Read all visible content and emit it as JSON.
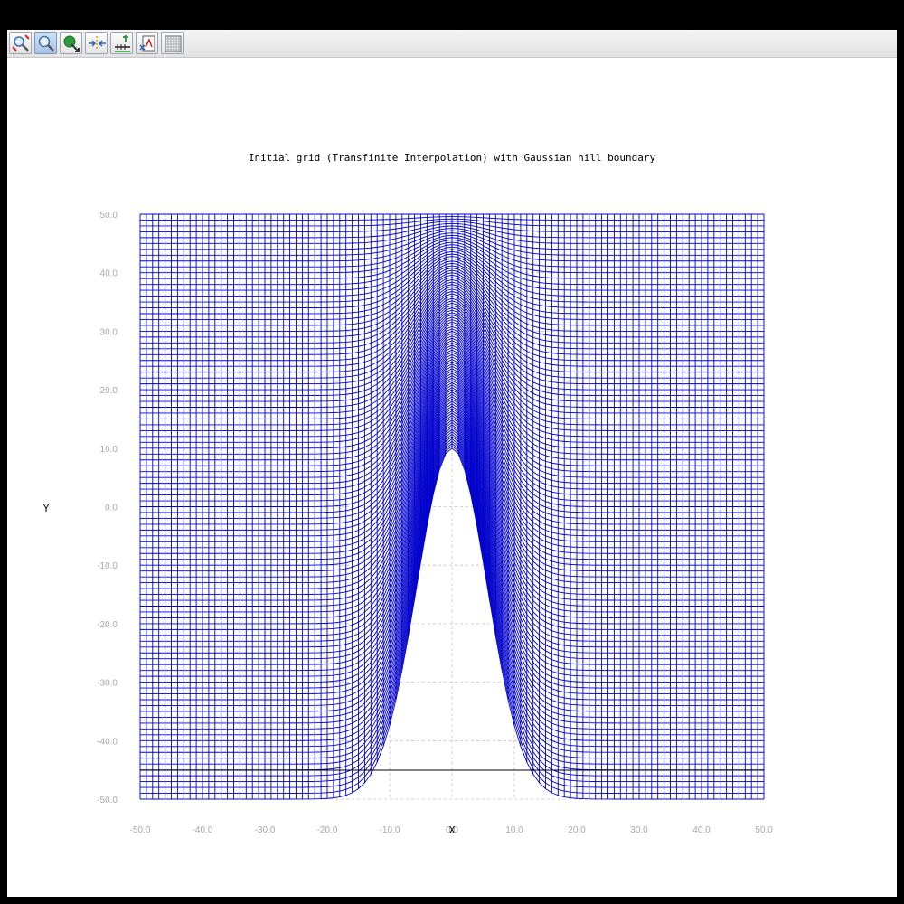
{
  "toolbar": {
    "buttons": [
      {
        "name": "zoom-reset-icon"
      },
      {
        "name": "zoom-icon",
        "active": true
      },
      {
        "name": "pan-icon"
      },
      {
        "name": "fit-axes-icon"
      },
      {
        "name": "axis-settings-icon"
      },
      {
        "name": "export-icon"
      },
      {
        "name": "grid-toggle-icon"
      }
    ]
  },
  "chart_data": {
    "type": "line",
    "title": "Initial grid (Transfinite Interpolation) with Gaussian hill boundary",
    "xlabel": "X",
    "ylabel": "Y",
    "xlim": [
      -50,
      50
    ],
    "ylim": [
      -50,
      50
    ],
    "xticks": [
      "-50.0",
      "-40.0",
      "-30.0",
      "-20.0",
      "-10.0",
      "0.0",
      "10.0",
      "20.0",
      "30.0",
      "40.0",
      "50.0"
    ],
    "yticks": [
      "50.0",
      "40.0",
      "30.0",
      "20.0",
      "10.0",
      "0.0",
      "-10.0",
      "-20.0",
      "-30.0",
      "-40.0",
      "-50.0"
    ],
    "grid": true,
    "line_color": "#0000cc",
    "grid_color": "#c4c4c4",
    "series": [
      {
        "kind": "structured grid",
        "i_lines": 101,
        "j_lines": 101,
        "top_boundary": "y = 50",
        "left_boundary": "x = -50",
        "right_boundary": "x = 50",
        "bottom_boundary": {
          "shape": "gaussian",
          "base_y": -50,
          "peak_y": 10,
          "center_x": 0,
          "width": 8
        }
      }
    ]
  }
}
